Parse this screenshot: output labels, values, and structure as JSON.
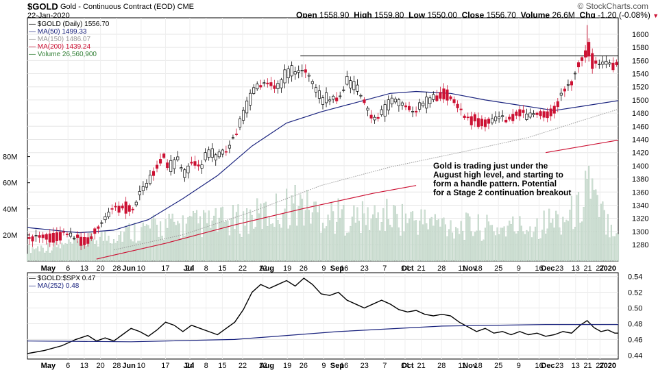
{
  "header": {
    "symbol": "$GOLD",
    "name": "Gold - Continuous Contract (EOD)",
    "exchange": "CME",
    "date": "22-Jan-2020",
    "ohlc": {
      "open_label": "Open",
      "open": "1558.90",
      "high_label": "High",
      "high": "1559.80",
      "low_label": "Low",
      "low": "1550.00",
      "close_label": "Close",
      "close": "1556.70",
      "volume_label": "Volume",
      "volume": "26.6M",
      "chg_label": "Chg",
      "chg": "-1.20 (-0.08%)"
    },
    "brand": "© StockCharts.com"
  },
  "legend_main": [
    {
      "text": "$GOLD (Daily) 1556.70",
      "color": "#000000"
    },
    {
      "text": "MA(50) 1499.33",
      "color": "#1a237e"
    },
    {
      "text": "MA(150) 1486.07",
      "color": "#999999"
    },
    {
      "text": "MA(200) 1439.24",
      "color": "#cc1133"
    },
    {
      "text": "Volume 26,560,900",
      "color": "#2e7d32"
    }
  ],
  "legend_lower": [
    {
      "text": "$GOLD:$SPX 0.47",
      "color": "#000000"
    },
    {
      "text": "MA(252) 0.48",
      "color": "#1a237e"
    }
  ],
  "annotation": "Gold is trading just under the August high level, and starting to form a handle pattern. Potential for a Stage 2 continuation breakout",
  "chart_data": [
    {
      "type": "candlestick",
      "title": "$GOLD (Daily) 1556.70",
      "ylim": [
        1255,
        1625
      ],
      "y_ticks": [
        1280,
        1300,
        1320,
        1340,
        1360,
        1380,
        1400,
        1420,
        1440,
        1460,
        1480,
        1500,
        1520,
        1540,
        1560,
        1580,
        1600
      ],
      "x_month_labels": [
        "May",
        "Jun",
        "Jul",
        "Aug",
        "Sep",
        "Oct",
        "Nov",
        "Dec",
        "2020"
      ],
      "x_day_labels": [
        "6",
        "13",
        "20",
        "28",
        "10",
        "17",
        "24",
        "8",
        "15",
        "22",
        "12",
        "19",
        "26",
        "9",
        "16",
        "23",
        "7",
        "14",
        "21",
        "28",
        "11",
        "18",
        "25",
        "9",
        "16",
        "23",
        "13",
        "21",
        "27"
      ],
      "resistance_level": 1567,
      "close_points": [
        [
          0,
          1282
        ],
        [
          5,
          1285
        ],
        [
          10,
          1288
        ],
        [
          15,
          1292
        ],
        [
          20,
          1296
        ],
        [
          25,
          1290
        ],
        [
          30,
          1285
        ],
        [
          35,
          1288
        ],
        [
          40,
          1300
        ],
        [
          45,
          1318
        ],
        [
          50,
          1332
        ],
        [
          55,
          1338
        ],
        [
          60,
          1330
        ],
        [
          65,
          1352
        ],
        [
          70,
          1372
        ],
        [
          75,
          1402
        ],
        [
          78,
          1418
        ],
        [
          82,
          1396
        ],
        [
          86,
          1410
        ],
        [
          90,
          1388
        ],
        [
          95,
          1412
        ],
        [
          100,
          1405
        ],
        [
          105,
          1420
        ],
        [
          110,
          1415
        ],
        [
          115,
          1430
        ],
        [
          120,
          1450
        ],
        [
          125,
          1480
        ],
        [
          128,
          1500
        ],
        [
          131,
          1515
        ],
        [
          135,
          1528
        ],
        [
          140,
          1532
        ],
        [
          145,
          1522
        ],
        [
          150,
          1542
        ],
        [
          155,
          1550
        ],
        [
          160,
          1555
        ],
        [
          163,
          1540
        ],
        [
          166,
          1520
        ],
        [
          170,
          1500
        ],
        [
          175,
          1505
        ],
        [
          180,
          1508
        ],
        [
          185,
          1528
        ],
        [
          190,
          1518
        ],
        [
          195,
          1498
        ],
        [
          200,
          1475
        ],
        [
          205,
          1480
        ],
        [
          210,
          1498
        ],
        [
          215,
          1500
        ],
        [
          220,
          1492
        ],
        [
          225,
          1488
        ],
        [
          230,
          1495
        ],
        [
          235,
          1505
        ],
        [
          240,
          1512
        ],
        [
          245,
          1502
        ],
        [
          250,
          1478
        ],
        [
          255,
          1468
        ],
        [
          260,
          1470
        ],
        [
          265,
          1462
        ],
        [
          270,
          1465
        ],
        [
          275,
          1468
        ],
        [
          280,
          1475
        ],
        [
          285,
          1480
        ],
        [
          288,
          1470
        ],
        [
          292,
          1475
        ],
        [
          296,
          1478
        ],
        [
          300,
          1476
        ],
        [
          305,
          1485
        ],
        [
          310,
          1508
        ],
        [
          315,
          1522
        ],
        [
          318,
          1548
        ],
        [
          321,
          1560
        ],
        [
          324,
          1580
        ],
        [
          327,
          1555
        ],
        [
          330,
          1548
        ],
        [
          335,
          1550
        ],
        [
          340,
          1556
        ],
        [
          342,
          1557
        ]
      ],
      "ma": [
        {
          "name": "MA(50)",
          "color": "#1a237e",
          "points": [
            [
              0,
              1306
            ],
            [
              30,
              1298
            ],
            [
              50,
              1302
            ],
            [
              70,
              1318
            ],
            [
              90,
              1350
            ],
            [
              110,
              1385
            ],
            [
              130,
              1430
            ],
            [
              150,
              1465
            ],
            [
              170,
              1482
            ],
            [
              190,
              1496
            ],
            [
              210,
              1510
            ],
            [
              225,
              1513
            ],
            [
              245,
              1510
            ],
            [
              265,
              1500
            ],
            [
              285,
              1492
            ],
            [
              305,
              1484
            ],
            [
              320,
              1490
            ],
            [
              342,
              1499
            ]
          ]
        },
        {
          "name": "MA(150)",
          "color": "#999999",
          "points": [
            [
              50,
              1272
            ],
            [
              90,
              1295
            ],
            [
              130,
              1330
            ],
            [
              170,
              1370
            ],
            [
              210,
              1398
            ],
            [
              250,
              1420
            ],
            [
              290,
              1443
            ],
            [
              320,
              1468
            ],
            [
              342,
              1486
            ]
          ]
        },
        {
          "name": "MA(200)",
          "color": "#cc1133",
          "points": [
            [
              40,
              1258
            ],
            [
              80,
              1282
            ],
            [
              120,
              1310
            ],
            [
              160,
              1335
            ],
            [
              200,
              1358
            ],
            [
              225,
              1370
            ]
          ]
        },
        {
          "name": "MA(200) 2020",
          "color": "#cc1133",
          "points": [
            [
              300,
              1420
            ],
            [
              342,
              1439
            ]
          ]
        }
      ]
    },
    {
      "type": "bar",
      "title": "Volume 26,560,900",
      "ylim": [
        0,
        95
      ],
      "y_ticks": [
        20,
        40,
        60,
        80
      ],
      "y_tick_labels": [
        "20M",
        "40M",
        "60M",
        "80M"
      ],
      "volume_profile": [
        [
          0,
          10
        ],
        [
          20,
          12
        ],
        [
          40,
          18
        ],
        [
          60,
          24
        ],
        [
          80,
          28
        ],
        [
          100,
          30
        ],
        [
          120,
          32
        ],
        [
          140,
          38
        ],
        [
          155,
          46
        ],
        [
          170,
          38
        ],
        [
          190,
          34
        ],
        [
          210,
          36
        ],
        [
          230,
          32
        ],
        [
          250,
          28
        ],
        [
          270,
          26
        ],
        [
          290,
          28
        ],
        [
          310,
          34
        ],
        [
          320,
          42
        ],
        [
          324,
          72
        ],
        [
          330,
          40
        ],
        [
          342,
          26
        ]
      ]
    },
    {
      "type": "line",
      "title": "$GOLD:$SPX 0.47",
      "ylim": [
        0.435,
        0.545
      ],
      "y_ticks": [
        0.44,
        0.46,
        0.48,
        0.5,
        0.52,
        0.54
      ],
      "series": [
        {
          "name": "$GOLD:$SPX",
          "color": "#000000",
          "points": [
            [
              0,
              0.442
            ],
            [
              10,
              0.446
            ],
            [
              20,
              0.452
            ],
            [
              28,
              0.46
            ],
            [
              35,
              0.465
            ],
            [
              40,
              0.458
            ],
            [
              45,
              0.462
            ],
            [
              50,
              0.458
            ],
            [
              55,
              0.466
            ],
            [
              60,
              0.474
            ],
            [
              65,
              0.47
            ],
            [
              70,
              0.464
            ],
            [
              75,
              0.472
            ],
            [
              80,
              0.482
            ],
            [
              85,
              0.478
            ],
            [
              90,
              0.47
            ],
            [
              95,
              0.478
            ],
            [
              100,
              0.474
            ],
            [
              105,
              0.47
            ],
            [
              110,
              0.466
            ],
            [
              115,
              0.474
            ],
            [
              120,
              0.482
            ],
            [
              125,
              0.498
            ],
            [
              130,
              0.52
            ],
            [
              135,
              0.53
            ],
            [
              140,
              0.525
            ],
            [
              145,
              0.53
            ],
            [
              150,
              0.535
            ],
            [
              155,
              0.528
            ],
            [
              160,
              0.538
            ],
            [
              165,
              0.53
            ],
            [
              170,
              0.518
            ],
            [
              175,
              0.516
            ],
            [
              180,
              0.52
            ],
            [
              185,
              0.51
            ],
            [
              190,
              0.505
            ],
            [
              195,
              0.5
            ],
            [
              200,
              0.505
            ],
            [
              205,
              0.51
            ],
            [
              210,
              0.505
            ],
            [
              215,
              0.498
            ],
            [
              220,
              0.495
            ],
            [
              225,
              0.497
            ],
            [
              230,
              0.492
            ],
            [
              235,
              0.49
            ],
            [
              240,
              0.492
            ],
            [
              245,
              0.49
            ],
            [
              250,
              0.482
            ],
            [
              255,
              0.476
            ],
            [
              260,
              0.47
            ],
            [
              265,
              0.474
            ],
            [
              270,
              0.468
            ],
            [
              275,
              0.47
            ],
            [
              280,
              0.466
            ],
            [
              285,
              0.47
            ],
            [
              290,
              0.466
            ],
            [
              295,
              0.468
            ],
            [
              300,
              0.464
            ],
            [
              305,
              0.466
            ],
            [
              310,
              0.47
            ],
            [
              315,
              0.468
            ],
            [
              320,
              0.478
            ],
            [
              324,
              0.484
            ],
            [
              328,
              0.475
            ],
            [
              332,
              0.47
            ],
            [
              336,
              0.472
            ],
            [
              340,
              0.468
            ],
            [
              342,
              0.468
            ]
          ]
        },
        {
          "name": "MA(252)",
          "color": "#1a237e",
          "points": [
            [
              0,
              0.458
            ],
            [
              60,
              0.457
            ],
            [
              120,
              0.46
            ],
            [
              180,
              0.47
            ],
            [
              240,
              0.477
            ],
            [
              300,
              0.479
            ],
            [
              342,
              0.479
            ]
          ]
        }
      ]
    }
  ]
}
